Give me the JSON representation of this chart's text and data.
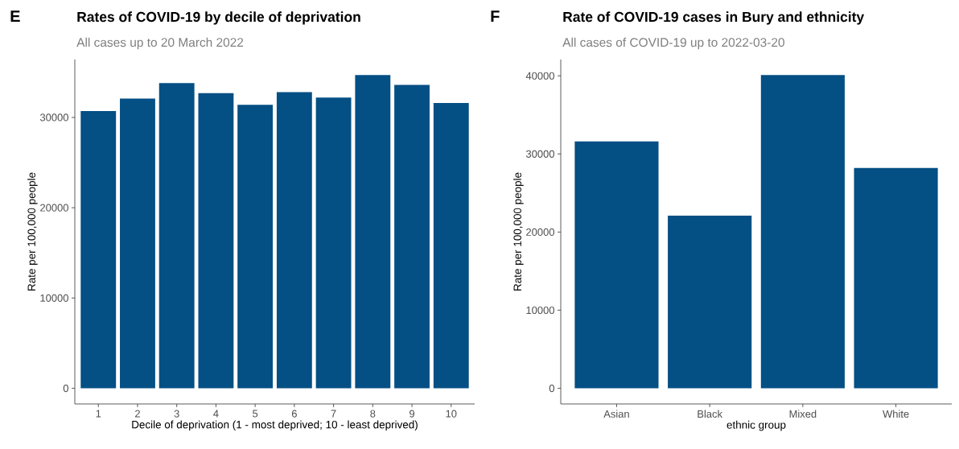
{
  "chart_data": [
    {
      "type": "bar",
      "title": "Rates of COVID-19 by decile of deprivation",
      "subtitle": "All cases up to 20 March 2022",
      "xlabel": "Decile of deprivation (1 - most deprived; 10 - least deprived)",
      "ylabel": "Rate per 100,000 people",
      "annotations": [
        "E"
      ],
      "categories": [
        "1",
        "2",
        "3",
        "4",
        "5",
        "6",
        "7",
        "8",
        "9",
        "10"
      ],
      "values": [
        30700,
        32100,
        33800,
        32700,
        31400,
        32800,
        32200,
        34700,
        33600,
        31600
      ],
      "color": "#044f84",
      "ylim": [
        -1734,
        36414
      ],
      "yticks": [
        0,
        10000,
        20000,
        30000
      ],
      "grid": false
    },
    {
      "type": "bar",
      "title": "Rate of COVID-19 cases in Bury and ethnicity",
      "subtitle": "All cases of COVID-19 up to 2022-03-20",
      "xlabel": "ethnic group",
      "ylabel": "Rate per 100,000 people",
      "annotations": [
        "F"
      ],
      "categories": [
        "Asian",
        "Black",
        "Mixed",
        "White"
      ],
      "values": [
        31600,
        22100,
        40100,
        28200
      ],
      "color": "#044f84",
      "ylim": [
        -2004,
        42084
      ],
      "yticks": [
        0,
        10000,
        20000,
        30000,
        40000
      ],
      "grid": false
    }
  ]
}
